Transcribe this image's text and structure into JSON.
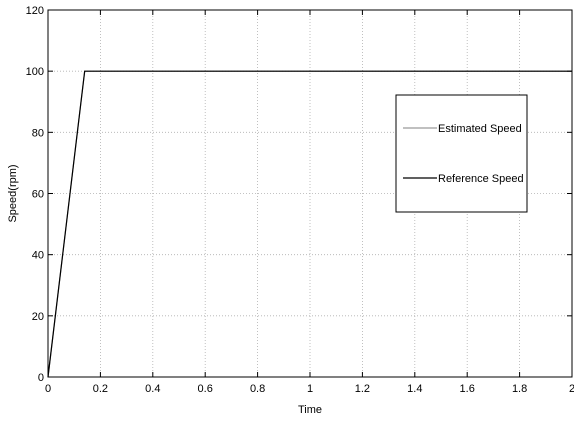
{
  "chart_data": {
    "type": "line",
    "title": "",
    "xlabel": "Time",
    "ylabel": "Speed(rpm)",
    "xlim": [
      0,
      2
    ],
    "ylim": [
      0,
      120
    ],
    "xticks": [
      0,
      0.2,
      0.4,
      0.6,
      0.8,
      1,
      1.2,
      1.4,
      1.6,
      1.8,
      2
    ],
    "xtick_labels": [
      "0",
      "0.2",
      "0.4",
      "0.6",
      "0.8",
      "1",
      "1.2",
      "1.4",
      "1.6",
      "1.8",
      "2"
    ],
    "yticks": [
      0,
      20,
      40,
      60,
      80,
      100,
      120
    ],
    "ytick_labels": [
      "0",
      "20",
      "40",
      "60",
      "80",
      "100",
      "120"
    ],
    "grid": true,
    "legend_position": "right",
    "series": [
      {
        "name": "Estimated Speed",
        "color": "#9a9a9a",
        "x": [
          0,
          0.14,
          2
        ],
        "y": [
          0,
          100,
          100
        ]
      },
      {
        "name": "Reference Speed",
        "color": "#000000",
        "x": [
          0,
          0.14,
          2
        ],
        "y": [
          0,
          100,
          100
        ]
      }
    ]
  }
}
